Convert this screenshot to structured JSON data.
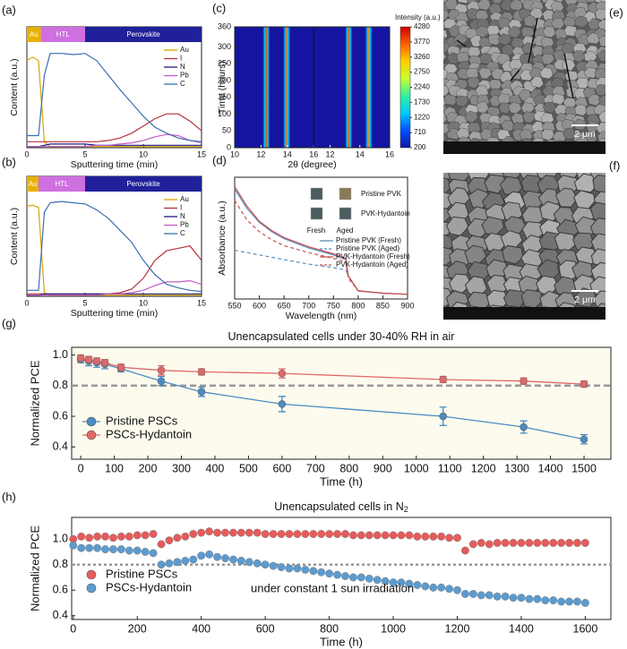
{
  "chart_data": [
    {
      "type": "line",
      "label": "(a)",
      "xlabel": "Sputtering time (min)",
      "ylabel": "Content (a.u.)",
      "legend": "upper right",
      "bands": [
        {
          "name": "Au",
          "start": 0,
          "end": 1.2,
          "color": "#e8b000"
        },
        {
          "name": "HTL",
          "start": 1.2,
          "end": 5,
          "color": "#cf6fe0"
        },
        {
          "name": "Perovskite",
          "start": 5,
          "end": 15,
          "color": "#20209a"
        }
      ],
      "x": [
        0,
        0.5,
        1,
        1.5,
        2,
        3,
        4,
        5,
        6,
        7,
        8,
        9,
        10,
        11,
        12,
        13,
        14,
        15
      ],
      "xlim": [
        0,
        15
      ],
      "xticks": [
        0,
        5,
        10,
        15
      ],
      "ylim": [
        0,
        1
      ],
      "yticks": [],
      "series": [
        {
          "name": "Au",
          "color": "#d9a400",
          "values": [
            0.72,
            0.75,
            0.72,
            0.05,
            0.01,
            0.01,
            0.01,
            0.01,
            0.01,
            0.01,
            0.01,
            0.01,
            0.01,
            0.01,
            0.01,
            0.01,
            0.01,
            0.01
          ]
        },
        {
          "name": "I",
          "color": "#b8323a",
          "values": [
            0.05,
            0.05,
            0.05,
            0.05,
            0.05,
            0.05,
            0.05,
            0.05,
            0.05,
            0.06,
            0.08,
            0.12,
            0.18,
            0.24,
            0.28,
            0.28,
            0.22,
            0.14
          ]
        },
        {
          "name": "N",
          "color": "#1c1c7c",
          "values": [
            0.01,
            0.01,
            0.01,
            0.02,
            0.03,
            0.03,
            0.03,
            0.03,
            0.02,
            0.02,
            0.02,
            0.02,
            0.02,
            0.02,
            0.02,
            0.02,
            0.02,
            0.02
          ]
        },
        {
          "name": "Pb",
          "color": "#c05dc9",
          "values": [
            0.01,
            0.01,
            0.01,
            0.01,
            0.01,
            0.01,
            0.01,
            0.01,
            0.02,
            0.02,
            0.03,
            0.04,
            0.06,
            0.09,
            0.11,
            0.1,
            0.06,
            0.04
          ]
        },
        {
          "name": "C",
          "color": "#3a6fb0",
          "values": [
            0.1,
            0.1,
            0.1,
            0.6,
            0.78,
            0.78,
            0.77,
            0.78,
            0.72,
            0.6,
            0.48,
            0.37,
            0.26,
            0.17,
            0.12,
            0.08,
            0.06,
            0.05
          ]
        }
      ]
    },
    {
      "type": "line",
      "label": "(b)",
      "xlabel": "Sputtering time (min)",
      "ylabel": "Content (a.u.)",
      "legend": "upper right",
      "bands": [
        {
          "name": "Au",
          "start": 0,
          "end": 1.0,
          "color": "#e8b000"
        },
        {
          "name": "HTL",
          "start": 1.0,
          "end": 5,
          "color": "#cf6fe0"
        },
        {
          "name": "Perovskite",
          "start": 5,
          "end": 15,
          "color": "#20209a"
        }
      ],
      "x": [
        0,
        0.5,
        1,
        1.5,
        2,
        3,
        4,
        5,
        6,
        7,
        8,
        9,
        10,
        11,
        12,
        13,
        14,
        15
      ],
      "xlim": [
        0,
        15
      ],
      "xticks": [
        0,
        5,
        10,
        15
      ],
      "ylim": [
        0,
        1
      ],
      "yticks": [],
      "series": [
        {
          "name": "Au",
          "color": "#d9a400",
          "values": [
            0.75,
            0.76,
            0.74,
            0.03,
            0.01,
            0.01,
            0.01,
            0.01,
            0.01,
            0.01,
            0.01,
            0.01,
            0.01,
            0.01,
            0.01,
            0.01,
            0.01,
            0.01
          ]
        },
        {
          "name": "I",
          "color": "#b8323a",
          "values": [
            0.02,
            0.02,
            0.02,
            0.02,
            0.02,
            0.02,
            0.02,
            0.02,
            0.02,
            0.02,
            0.03,
            0.06,
            0.15,
            0.3,
            0.38,
            0.4,
            0.42,
            0.3
          ]
        },
        {
          "name": "N",
          "color": "#1c1c7c",
          "values": [
            0.01,
            0.01,
            0.01,
            0.02,
            0.02,
            0.02,
            0.02,
            0.02,
            0.02,
            0.02,
            0.02,
            0.02,
            0.02,
            0.02,
            0.02,
            0.02,
            0.02,
            0.02
          ]
        },
        {
          "name": "Pb",
          "color": "#c05dc9",
          "values": [
            0.01,
            0.01,
            0.01,
            0.01,
            0.01,
            0.01,
            0.01,
            0.01,
            0.01,
            0.02,
            0.02,
            0.03,
            0.05,
            0.09,
            0.12,
            0.12,
            0.13,
            0.1
          ]
        },
        {
          "name": "C",
          "color": "#3a6fb0",
          "values": [
            0.05,
            0.05,
            0.05,
            0.7,
            0.78,
            0.79,
            0.78,
            0.77,
            0.72,
            0.65,
            0.55,
            0.45,
            0.3,
            0.18,
            0.1,
            0.07,
            0.05,
            0.04
          ]
        }
      ]
    },
    {
      "type": "heatmap",
      "label": "(c)",
      "xlabel": "2θ (degree)",
      "ylabel": "Time (hours)",
      "colorbar_label": "Intensity (a.u.)",
      "ylim": [
        0,
        360
      ],
      "yticks": [
        0,
        50,
        100,
        150,
        200,
        250,
        300,
        360
      ],
      "background": 200,
      "clim": [
        200,
        4280
      ],
      "cticks": [
        200,
        710,
        1220,
        1730,
        2240,
        2750,
        3260,
        3770,
        4280
      ],
      "colormap": [
        "#1414a0",
        "#0050ff",
        "#00c8ff",
        "#30f0a0",
        "#c8ff30",
        "#ffd000",
        "#ff6000",
        "#d00000"
      ],
      "panels": [
        {
          "xlim": [
            10,
            16
          ],
          "xticks": [
            10,
            12,
            14,
            16
          ],
          "peaks": [
            12.4,
            13.95
          ],
          "intensities": [
            3800,
            3600
          ]
        },
        {
          "xlim": [
            10.9,
            16
          ],
          "xticks": [
            12,
            14,
            16
          ],
          "peaks": [
            13.25,
            14.6
          ],
          "intensities": [
            3700,
            3500
          ]
        }
      ]
    },
    {
      "type": "line",
      "label": "(d)",
      "xlabel": "Wavelength (nm)",
      "ylabel": "Absorbance (a.u.)",
      "legend": "center right",
      "inset": {
        "rows": [
          "Pristine PVK",
          "PVK-Hydantoin"
        ],
        "cols": [
          "Fresh",
          "Aged"
        ]
      },
      "x": [
        550,
        575,
        600,
        625,
        650,
        700,
        750,
        775,
        780,
        800,
        850,
        900
      ],
      "xlim": [
        550,
        900
      ],
      "xticks": [
        550,
        600,
        650,
        700,
        750,
        800,
        850,
        900
      ],
      "ylim": [
        0,
        1.05
      ],
      "yticks": [],
      "series": [
        {
          "name": "Pristine PVK (Fresh)",
          "color": "#5a8fbf",
          "dash": false,
          "values": [
            0.95,
            0.78,
            0.66,
            0.58,
            0.52,
            0.44,
            0.38,
            0.34,
            0.2,
            0.07,
            0.05,
            0.04
          ]
        },
        {
          "name": "Pristine PVK (Aged)",
          "color": "#5a8fbf",
          "dash": true,
          "values": [
            0.42,
            0.4,
            0.38,
            0.36,
            0.34,
            0.3,
            0.27,
            0.25,
            0.2,
            0.07,
            0.05,
            0.04
          ]
        },
        {
          "name": "PVK-Hydantoin (Fresh)",
          "color": "#c9504f",
          "dash": false,
          "values": [
            0.97,
            0.8,
            0.67,
            0.59,
            0.53,
            0.45,
            0.39,
            0.35,
            0.2,
            0.07,
            0.05,
            0.04
          ]
        },
        {
          "name": "PVK-Hydantoin (Aged)",
          "color": "#c9504f",
          "dash": true,
          "values": [
            0.85,
            0.68,
            0.58,
            0.51,
            0.46,
            0.4,
            0.35,
            0.32,
            0.18,
            0.07,
            0.05,
            0.04
          ]
        }
      ]
    },
    {
      "type": "image",
      "label": "(e)",
      "scale_bar": "2 μm",
      "cracks": true
    },
    {
      "type": "image",
      "label": "(f)",
      "scale_bar": "2 μm",
      "cracks": false
    },
    {
      "type": "errorbar",
      "label": "(g)",
      "title": "Unencapsulated cells under 30-40% RH in air",
      "xlabel": "Time (h)",
      "ylabel": "Normalized PCE",
      "legend": "lower left",
      "hline": 0.8,
      "x": [
        0,
        24,
        48,
        72,
        120,
        240,
        360,
        600,
        1080,
        1320,
        1500
      ],
      "xlim": [
        -27,
        1580
      ],
      "xticks": [
        0,
        100,
        200,
        300,
        400,
        500,
        600,
        700,
        800,
        900,
        1000,
        1100,
        1200,
        1300,
        1400,
        1500
      ],
      "ylim": [
        0.32,
        1.05
      ],
      "yticks": [
        0.4,
        0.6,
        0.8,
        {
          "value": 1.0,
          "label": "1.0"
        }
      ],
      "series": [
        {
          "name": "Pristine PSCs",
          "color": "#4a8bc4",
          "values": [
            0.97,
            0.96,
            0.95,
            0.94,
            0.91,
            0.83,
            0.76,
            0.68,
            0.6,
            0.53,
            0.45
          ],
          "errors": [
            0.02,
            0.03,
            0.03,
            0.03,
            0.02,
            0.03,
            0.03,
            0.05,
            0.06,
            0.04,
            0.03
          ]
        },
        {
          "name": "PSCs-Hydantoin",
          "color": "#e06868",
          "values": [
            0.98,
            0.97,
            0.96,
            0.95,
            0.92,
            0.9,
            0.89,
            0.88,
            0.84,
            0.83,
            0.81
          ],
          "errors": [
            0.02,
            0.02,
            0.02,
            0.02,
            0.02,
            0.03,
            0.02,
            0.03,
            0.02,
            0.02,
            0.02
          ]
        }
      ]
    },
    {
      "type": "scatter",
      "label": "(h)",
      "title": "Unencapsulated cells in N",
      "title_sub": "2",
      "xlabel": "Time (h)",
      "ylabel": "Normalized PCE",
      "legend": "lower left",
      "hline": 0.8,
      "annotation": "under constant 1 sun irradiation",
      "x": [
        0,
        25,
        50,
        75,
        100,
        125,
        150,
        175,
        200,
        225,
        250,
        275,
        300,
        325,
        350,
        375,
        400,
        425,
        450,
        475,
        500,
        525,
        550,
        575,
        600,
        625,
        650,
        675,
        700,
        725,
        750,
        775,
        800,
        825,
        850,
        875,
        900,
        925,
        950,
        975,
        1000,
        1025,
        1050,
        1075,
        1100,
        1125,
        1150,
        1175,
        1200,
        1225,
        1250,
        1275,
        1300,
        1325,
        1350,
        1375,
        1400,
        1425,
        1450,
        1475,
        1500,
        1525,
        1550,
        1575,
        1600
      ],
      "xlim": [
        -5,
        1680
      ],
      "xticks": [
        0,
        200,
        400,
        600,
        800,
        1000,
        1200,
        1400,
        1600
      ],
      "ylim": [
        0.37,
        1.17
      ],
      "yticks": [
        0.4,
        0.6,
        0.8,
        {
          "value": 1.0,
          "label": "1.0"
        }
      ],
      "series": [
        {
          "name": "Pristine PSCs",
          "color": "#e85a5a",
          "values": [
            1.0,
            1.02,
            1.01,
            1.02,
            1.02,
            1.01,
            1.02,
            1.02,
            1.03,
            1.03,
            1.04,
            0.96,
            0.99,
            1.01,
            1.02,
            1.04,
            1.05,
            1.06,
            1.05,
            1.05,
            1.05,
            1.05,
            1.05,
            1.05,
            1.04,
            1.04,
            1.04,
            1.04,
            1.04,
            1.04,
            1.04,
            1.04,
            1.04,
            1.04,
            1.04,
            1.03,
            1.03,
            1.03,
            1.03,
            1.03,
            1.03,
            1.03,
            1.03,
            1.02,
            1.02,
            1.02,
            1.02,
            1.01,
            1.01,
            0.91,
            0.96,
            0.97,
            0.96,
            0.97,
            0.97,
            0.97,
            0.97,
            0.97,
            0.97,
            0.97,
            0.97,
            0.97,
            0.97,
            0.97,
            0.97
          ]
        },
        {
          "name": "PSCs-Hydantoin",
          "color": "#5b9bd0",
          "values": [
            0.95,
            0.93,
            0.93,
            0.93,
            0.92,
            0.92,
            0.92,
            0.91,
            0.91,
            0.9,
            0.89,
            0.8,
            0.81,
            0.82,
            0.83,
            0.84,
            0.87,
            0.88,
            0.86,
            0.85,
            0.84,
            0.83,
            0.82,
            0.81,
            0.8,
            0.79,
            0.78,
            0.77,
            0.77,
            0.76,
            0.75,
            0.74,
            0.73,
            0.72,
            0.71,
            0.7,
            0.7,
            0.69,
            0.68,
            0.67,
            0.66,
            0.66,
            0.65,
            0.64,
            0.63,
            0.62,
            0.62,
            0.61,
            0.6,
            0.57,
            0.57,
            0.56,
            0.56,
            0.55,
            0.55,
            0.54,
            0.54,
            0.53,
            0.53,
            0.52,
            0.52,
            0.51,
            0.51,
            0.51,
            0.5
          ]
        }
      ]
    }
  ]
}
